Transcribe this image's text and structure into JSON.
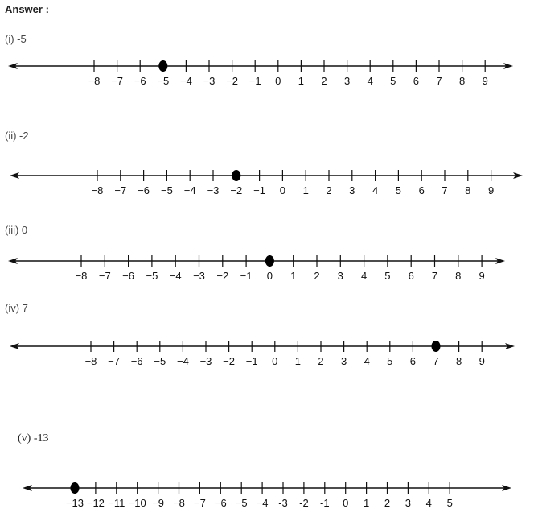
{
  "heading": "Answer :",
  "lines": [
    {
      "label": "(i) -5",
      "ticks": [
        "−8",
        "−7",
        "−6",
        "−5",
        "−4",
        "−3",
        "−2",
        "−1",
        "0",
        "1",
        "2",
        "3",
        "4",
        "5",
        "6",
        "7",
        "8",
        "9"
      ],
      "point": -5
    },
    {
      "label": "(ii) -2",
      "ticks": [
        "−8",
        "−7",
        "−6",
        "−5",
        "−4",
        "−3",
        "−2",
        "−1",
        "0",
        "1",
        "2",
        "3",
        "4",
        "5",
        "6",
        "7",
        "8",
        "9"
      ],
      "point": -2
    },
    {
      "label": "(iii) 0",
      "ticks": [
        "−8",
        "−7",
        "−6",
        "−5",
        "−4",
        "−3",
        "−2",
        "−1",
        "0",
        "1",
        "2",
        "3",
        "4",
        "5",
        "6",
        "7",
        "8",
        "9"
      ],
      "point": 0
    },
    {
      "label": "(iv) 7",
      "ticks": [
        "−8",
        "−7",
        "−6",
        "−5",
        "−4",
        "−3",
        "−2",
        "−1",
        "0",
        "1",
        "2",
        "3",
        "4",
        "5",
        "6",
        "7",
        "8",
        "9"
      ],
      "point": 7
    },
    {
      "label": "(v) -13",
      "ticks": [
        "−13",
        "−12",
        "−11",
        "−10",
        "−9",
        "−8",
        "−7",
        "−6",
        "−5",
        "−4",
        "-3",
        "-2",
        "-1",
        "0",
        "1",
        "2",
        "3",
        "4",
        "5"
      ],
      "point": -13
    }
  ]
}
